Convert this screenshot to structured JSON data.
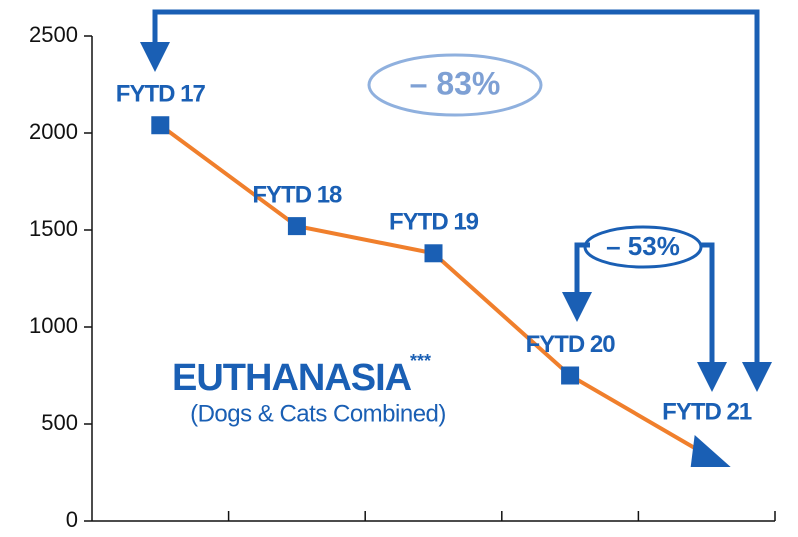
{
  "chart_data": {
    "type": "line",
    "categories": [
      "FYTD 17",
      "FYTD 18",
      "FYTD 19",
      "FYTD 20",
      "FYTD 21"
    ],
    "values": [
      2040,
      1520,
      1380,
      750,
      340
    ],
    "color": "#f07f2c",
    "marker_color": "#1a5fb4",
    "marker": "square",
    "end_marker": "triangle",
    "ylim": [
      0,
      2500
    ],
    "yticks": [
      0,
      500,
      1000,
      1500,
      2000,
      2500
    ],
    "annotations": [
      "– 83%",
      "– 53%",
      "EUTHANASIA",
      "***",
      "(Dogs & Cats Combined)"
    ]
  }
}
